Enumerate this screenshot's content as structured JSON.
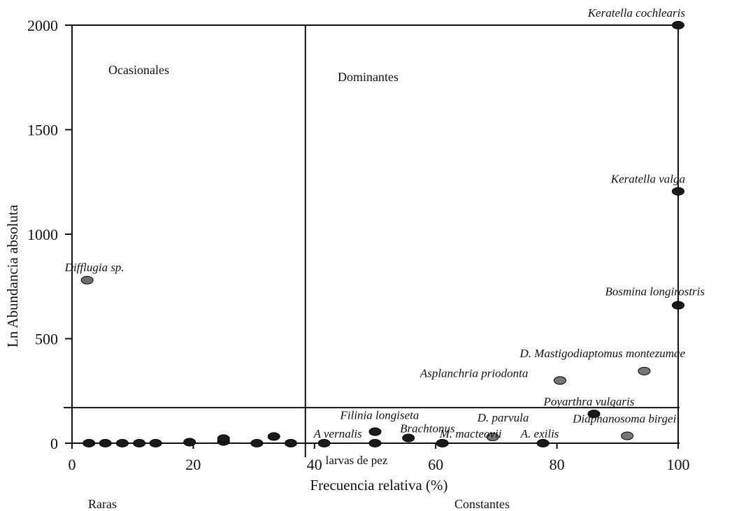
{
  "chart_data": {
    "type": "scatter",
    "xlabel": "Frecuencia relativa (%)",
    "ylabel": "Ln Abundancia absoluta",
    "xlim": [
      0,
      100
    ],
    "ylim": [
      0,
      2000
    ],
    "x_ticks": [
      0,
      20,
      40,
      60,
      80,
      100
    ],
    "y_ticks": [
      0,
      500,
      1000,
      1500,
      2000
    ],
    "thresholds": {
      "x": 38.5,
      "y": 170
    },
    "region_labels": {
      "top_left": "Ocasionales",
      "top_right": "Dominantes",
      "bottom_left": "Raras",
      "bottom_right": "Constantes"
    },
    "points": [
      {
        "x": 2.5,
        "y": 780,
        "label": "Difflugia sp.",
        "color": "#6e6e6e"
      },
      {
        "x": 2.8,
        "y": 0,
        "label": "",
        "color": "#1a1a1a"
      },
      {
        "x": 5.5,
        "y": 0,
        "label": "",
        "color": "#1a1a1a"
      },
      {
        "x": 8.3,
        "y": 0,
        "label": "",
        "color": "#1a1a1a"
      },
      {
        "x": 11.1,
        "y": 0,
        "label": "",
        "color": "#1a1a1a"
      },
      {
        "x": 13.8,
        "y": 0,
        "label": "",
        "color": "#1a1a1a"
      },
      {
        "x": 19.4,
        "y": 5,
        "label": "",
        "color": "#1a1a1a"
      },
      {
        "x": 25.0,
        "y": 8,
        "label": "",
        "color": "#1a1a1a"
      },
      {
        "x": 25.0,
        "y": 22,
        "label": "",
        "color": "#1a1a1a"
      },
      {
        "x": 30.5,
        "y": 0,
        "label": "",
        "color": "#1a1a1a"
      },
      {
        "x": 33.3,
        "y": 32,
        "label": "",
        "color": "#1a1a1a"
      },
      {
        "x": 36.1,
        "y": 0,
        "label": "",
        "color": "#1a1a1a"
      },
      {
        "x": 41.6,
        "y": 0,
        "label": "A vernalis",
        "color": "#1a1a1a"
      },
      {
        "x": 41.6,
        "y": 0,
        "label": "larvas de pez",
        "color": "#1a1a1a"
      },
      {
        "x": 50.0,
        "y": 55,
        "label": "Filinia longiseta",
        "color": "#1a1a1a"
      },
      {
        "x": 50.0,
        "y": 0,
        "label": "",
        "color": "#1a1a1a"
      },
      {
        "x": 55.5,
        "y": 25,
        "label": "Brachtonus",
        "color": "#1a1a1a"
      },
      {
        "x": 61.1,
        "y": 0,
        "label": "M. macteovii",
        "color": "#1a1a1a"
      },
      {
        "x": 69.4,
        "y": 30,
        "label": "D. parvula",
        "color": "#777777"
      },
      {
        "x": 77.7,
        "y": 0,
        "label": "A. exilis",
        "color": "#1a1a1a"
      },
      {
        "x": 80.5,
        "y": 300,
        "label": "Asplanchria priodonta",
        "color": "#777777"
      },
      {
        "x": 86.1,
        "y": 140,
        "label": "Poyarthra vulgaris",
        "color": "#1a1a1a"
      },
      {
        "x": 91.6,
        "y": 35,
        "label": "Diaphanosoma birgei",
        "color": "#777777"
      },
      {
        "x": 94.4,
        "y": 345,
        "label": "D. Mastigodiaptomus montezumae",
        "color": "#777777"
      },
      {
        "x": 100,
        "y": 2000,
        "label": "Keratella cochlearis",
        "color": "#1a1a1a"
      },
      {
        "x": 100,
        "y": 1205,
        "label": "Keratella valga",
        "color": "#1a1a1a"
      },
      {
        "x": 100,
        "y": 660,
        "label": "Bosmina longirostris",
        "color": "#1a1a1a"
      }
    ]
  }
}
